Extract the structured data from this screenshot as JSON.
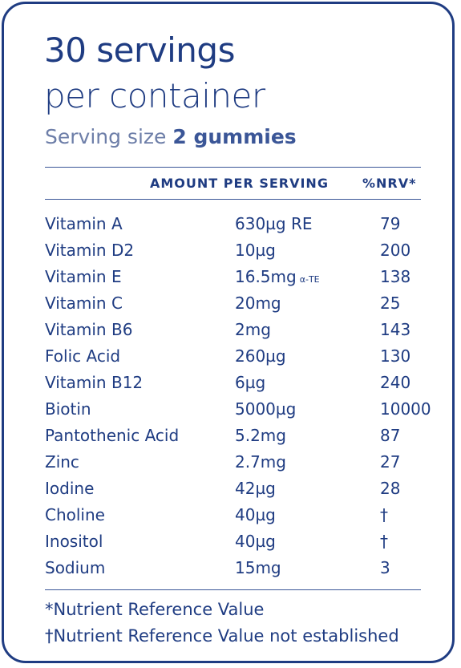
{
  "label": {
    "title_line1": "30 servings",
    "title_line2": "per container",
    "serving_prefix": "Serving size",
    "serving_value": "2 gummies"
  },
  "table": {
    "col_amount": "AMOUNT PER SERVING",
    "col_nrv": "%NRV*",
    "rows": [
      {
        "name": "Vitamin A",
        "amount": "630µg RE",
        "unit_note": "",
        "nrv": "79"
      },
      {
        "name": "Vitamin D2",
        "amount": "10µg",
        "unit_note": "",
        "nrv": "200"
      },
      {
        "name": "Vitamin E",
        "amount": "16.5mg",
        "unit_note": "α-TE",
        "nrv": "138"
      },
      {
        "name": "Vitamin C",
        "amount": "20mg",
        "unit_note": "",
        "nrv": "25"
      },
      {
        "name": "Vitamin B6",
        "amount": "2mg",
        "unit_note": "",
        "nrv": "143"
      },
      {
        "name": "Folic Acid",
        "amount": "260µg",
        "unit_note": "",
        "nrv": "130"
      },
      {
        "name": "Vitamin B12",
        "amount": "6µg",
        "unit_note": "",
        "nrv": "240"
      },
      {
        "name": "Biotin",
        "amount": "5000µg",
        "unit_note": "",
        "nrv": "10000"
      },
      {
        "name": "Pantothenic Acid",
        "amount": "5.2mg",
        "unit_note": "",
        "nrv": "87"
      },
      {
        "name": "Zinc",
        "amount": "2.7mg",
        "unit_note": "",
        "nrv": "27"
      },
      {
        "name": "Iodine",
        "amount": "42µg",
        "unit_note": "",
        "nrv": "28"
      },
      {
        "name": "Choline",
        "amount": "40µg",
        "unit_note": "",
        "nrv": "†"
      },
      {
        "name": "Inositol",
        "amount": "40µg",
        "unit_note": "",
        "nrv": "†"
      },
      {
        "name": "Sodium",
        "amount": "15mg",
        "unit_note": "",
        "nrv": "3"
      }
    ]
  },
  "footnotes": {
    "nrv_note": "*Nutrient Reference Value",
    "dagger_note": "†Nutrient Reference Value not established"
  },
  "colors": {
    "primary": "#1f3c82",
    "muted": "#6d7ea8"
  }
}
